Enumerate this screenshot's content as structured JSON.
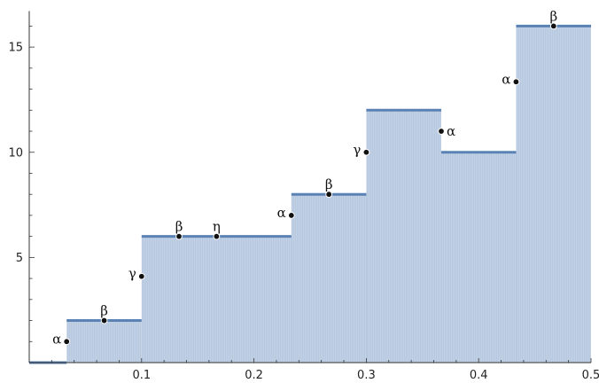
{
  "chart_data": {
    "type": "area",
    "title": "",
    "xlabel": "",
    "ylabel": "",
    "xlim": [
      0,
      0.5
    ],
    "ylim": [
      0,
      16.5
    ],
    "x_ticks": [
      0.1,
      0.2,
      0.3,
      0.4,
      0.5
    ],
    "x_tick_labels": [
      "0.1",
      "0.2",
      "0.3",
      "0.4",
      "0.5"
    ],
    "y_ticks": [
      5,
      10,
      15
    ],
    "y_tick_labels": [
      "5",
      "10",
      "15"
    ],
    "grid": false,
    "steps": [
      {
        "x0": 0.0,
        "x1": 0.0333,
        "y": 0
      },
      {
        "x0": 0.0333,
        "x1": 0.1,
        "y": 2
      },
      {
        "x0": 0.1,
        "x1": 0.2333,
        "y": 6
      },
      {
        "x0": 0.2333,
        "x1": 0.3,
        "y": 8
      },
      {
        "x0": 0.3,
        "x1": 0.3667,
        "y": 12
      },
      {
        "x0": 0.3667,
        "x1": 0.4333,
        "y": 10
      },
      {
        "x0": 0.4333,
        "x1": 0.5,
        "y": 16
      }
    ],
    "points": [
      {
        "x": 0.0333,
        "y": 1.0,
        "label": "α",
        "side": "left"
      },
      {
        "x": 0.0667,
        "y": 2.0,
        "label": "β",
        "side": "above"
      },
      {
        "x": 0.1,
        "y": 4.1,
        "label": "γ",
        "side": "left"
      },
      {
        "x": 0.1333,
        "y": 6.0,
        "label": "β",
        "side": "above"
      },
      {
        "x": 0.1667,
        "y": 6.0,
        "label": "η",
        "side": "above"
      },
      {
        "x": 0.2333,
        "y": 7.0,
        "label": "α",
        "side": "left"
      },
      {
        "x": 0.2667,
        "y": 8.0,
        "label": "β",
        "side": "above"
      },
      {
        "x": 0.3,
        "y": 10.0,
        "label": "γ",
        "side": "left"
      },
      {
        "x": 0.3667,
        "y": 11.0,
        "label": "α",
        "side": "right"
      },
      {
        "x": 0.4333,
        "y": 13.35,
        "label": "α",
        "side": "left"
      },
      {
        "x": 0.4667,
        "y": 16.0,
        "label": "β",
        "side": "above"
      }
    ],
    "colors": {
      "line": "#5b82b4",
      "fill": "#c3d1e5",
      "fill_stripe": "#aec1dc",
      "axis": "#333333",
      "point": "#111111"
    }
  }
}
